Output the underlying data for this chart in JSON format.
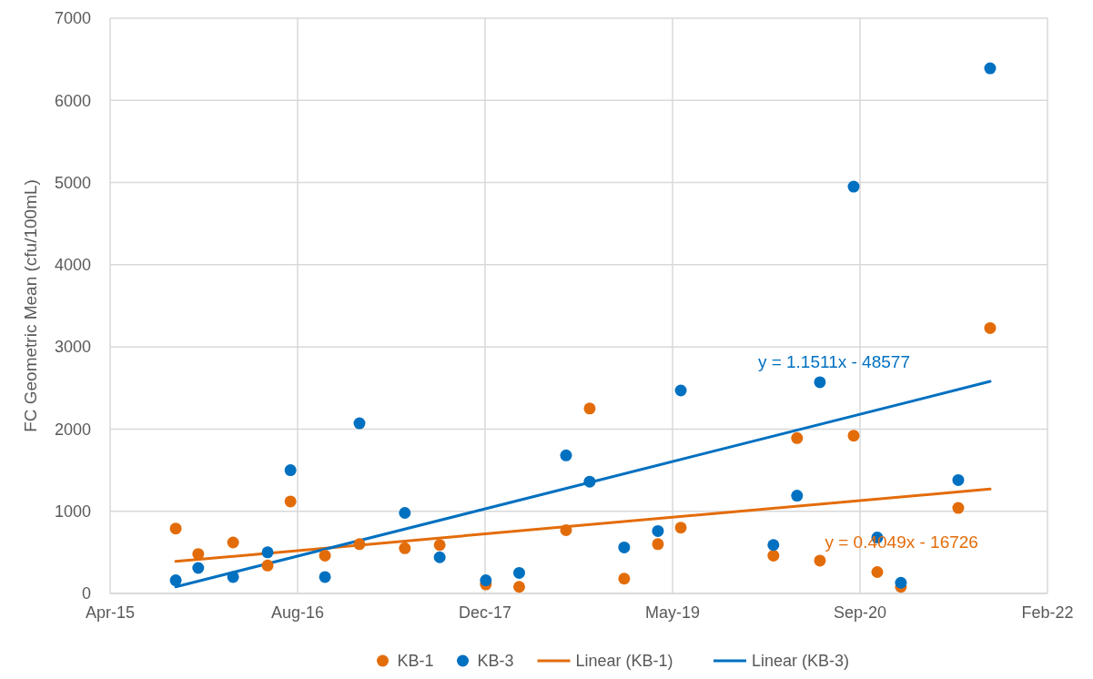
{
  "chart_data": {
    "type": "scatter",
    "ylabel": "FC Geometric Mean (cfu/100mL)",
    "x": [
      "2015-09-23",
      "2015-11-22",
      "2016-02-23",
      "2016-05-25",
      "2016-07-25",
      "2016-10-25",
      "2017-01-25",
      "2017-05-26",
      "2017-08-27",
      "2017-12-28",
      "2018-03-27",
      "2018-07-30",
      "2018-10-01",
      "2019-01-01",
      "2019-04-01",
      "2019-06-01",
      "2020-02-03",
      "2020-04-06",
      "2020-06-06",
      "2020-09-04",
      "2020-11-06",
      "2021-01-08",
      "2021-06-10",
      "2021-09-03"
    ],
    "series": [
      {
        "name": "KB-1",
        "color": "#e36c0a",
        "values": [
          790,
          480,
          620,
          340,
          1120,
          460,
          600,
          550,
          590,
          110,
          80,
          770,
          2250,
          180,
          600,
          800,
          460,
          1890,
          400,
          1920,
          260,
          80,
          1040,
          3230
        ]
      },
      {
        "name": "KB-3",
        "color": "#0070c0",
        "values": [
          160,
          310,
          200,
          500,
          1500,
          200,
          2070,
          980,
          440,
          160,
          250,
          1680,
          1360,
          560,
          760,
          2470,
          590,
          1190,
          2570,
          4950,
          680,
          130,
          1380,
          6390
        ]
      },
      {
        "name": "Linear (KB-1)",
        "type": "line",
        "marker": "none",
        "color": "#e36c0a",
        "x": [
          "2015-09-23",
          "2021-09-03"
        ],
        "values": [
          390,
          1270
        ]
      },
      {
        "name": "Linear (KB-3)",
        "type": "line",
        "marker": "none",
        "color": "#0070c0",
        "x": [
          "2015-09-23",
          "2021-09-03"
        ],
        "values": [
          80,
          2580
        ]
      }
    ],
    "annotations": [
      "y = 0.4049x - 16726",
      "y = 1.1511x - 48577"
    ],
    "xlim": [
      "2015-04-01",
      "2022-02-03"
    ],
    "xticks": [
      {
        "value": "2015-04-01",
        "label": "Apr-15"
      },
      {
        "value": "2016-08-13",
        "label": "Aug-16"
      },
      {
        "value": "2017-12-26",
        "label": "Dec-17"
      },
      {
        "value": "2019-05-10",
        "label": "May-19"
      },
      {
        "value": "2020-09-21",
        "label": "Sep-20"
      },
      {
        "value": "2022-02-03",
        "label": "Feb-22"
      }
    ],
    "ylim": [
      0,
      7000
    ],
    "yticks": [
      0,
      1000,
      2000,
      3000,
      4000,
      5000,
      6000,
      7000
    ],
    "grid": true,
    "legend": "bottom",
    "marker": "circle",
    "line_style": "solid"
  }
}
